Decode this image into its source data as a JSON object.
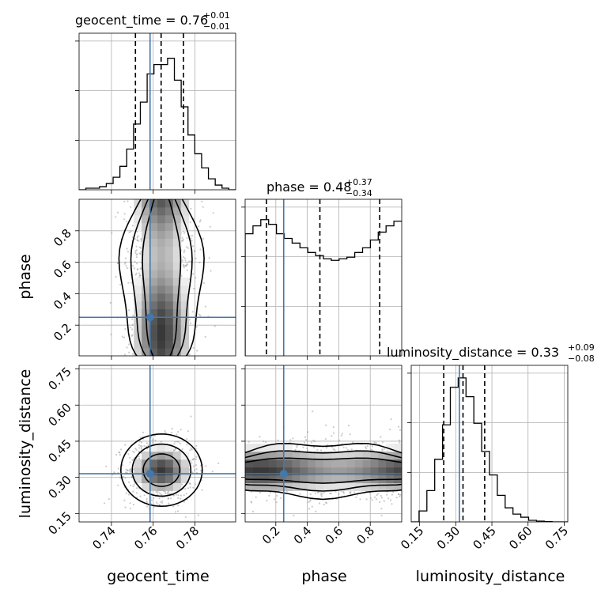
{
  "chart_data": {
    "type": "corner",
    "parameters": [
      "geocent_time",
      "phase",
      "luminosity_distance"
    ],
    "ranges": {
      "geocent_time": [
        0.7245,
        0.7995
      ],
      "phase": [
        0.005,
        1.0
      ],
      "luminosity_distance": [
        0.115,
        0.765
      ]
    },
    "ticks": {
      "geocent_time": [
        "0.74",
        "0.76",
        "0.78"
      ],
      "phase": [
        "0.2",
        "0.4",
        "0.6",
        "0.8"
      ],
      "luminosity_distance": [
        "0.15",
        "0.30",
        "0.45",
        "0.60",
        "0.75"
      ]
    },
    "truths": {
      "geocent_time": 0.7585,
      "phase": 0.25,
      "luminosity_distance": 0.315
    },
    "titles": {
      "geocent_time": {
        "prefix": "geocent_time = 0.76",
        "plus": "+0.01",
        "minus": "−0.01"
      },
      "phase": {
        "prefix": "phase = 0.48",
        "plus": "+0.37",
        "minus": "−0.34"
      },
      "luminosity_distance": {
        "prefix": "luminosity_distance = 0.33",
        "plus": "+0.09",
        "minus": "−0.08"
      }
    },
    "quantiles": {
      "geocent_time": [
        0.7515,
        0.7638,
        0.7745
      ],
      "phase": [
        0.14,
        0.48,
        0.86
      ],
      "luminosity_distance": [
        0.25,
        0.33,
        0.42
      ]
    },
    "histograms": {
      "geocent_time": {
        "edges_range": [
          0.7245,
          0.7995
        ],
        "counts": [
          0.0,
          0.01,
          0.01,
          0.02,
          0.04,
          0.08,
          0.15,
          0.26,
          0.42,
          0.56,
          0.74,
          0.8,
          0.8,
          0.84,
          0.7,
          0.53,
          0.35,
          0.23,
          0.14,
          0.07,
          0.03,
          0.01,
          0.0
        ]
      },
      "phase": {
        "edges_range": [
          0.005,
          1.0
        ],
        "counts": [
          0.78,
          0.83,
          0.87,
          0.84,
          0.78,
          0.75,
          0.72,
          0.69,
          0.66,
          0.64,
          0.62,
          0.61,
          0.62,
          0.63,
          0.66,
          0.69,
          0.74,
          0.79,
          0.83,
          0.86
        ]
      },
      "luminosity_distance": {
        "edges_range": [
          0.115,
          0.765
        ],
        "counts": [
          0.0,
          0.07,
          0.2,
          0.4,
          0.62,
          0.86,
          0.92,
          0.8,
          0.63,
          0.45,
          0.3,
          0.17,
          0.09,
          0.05,
          0.03,
          0.01,
          0.005,
          0.002,
          0.0,
          0.0
        ]
      }
    },
    "hist_yticks_fraction": [
      0.333,
      0.667,
      1.0
    ],
    "grid": true
  }
}
